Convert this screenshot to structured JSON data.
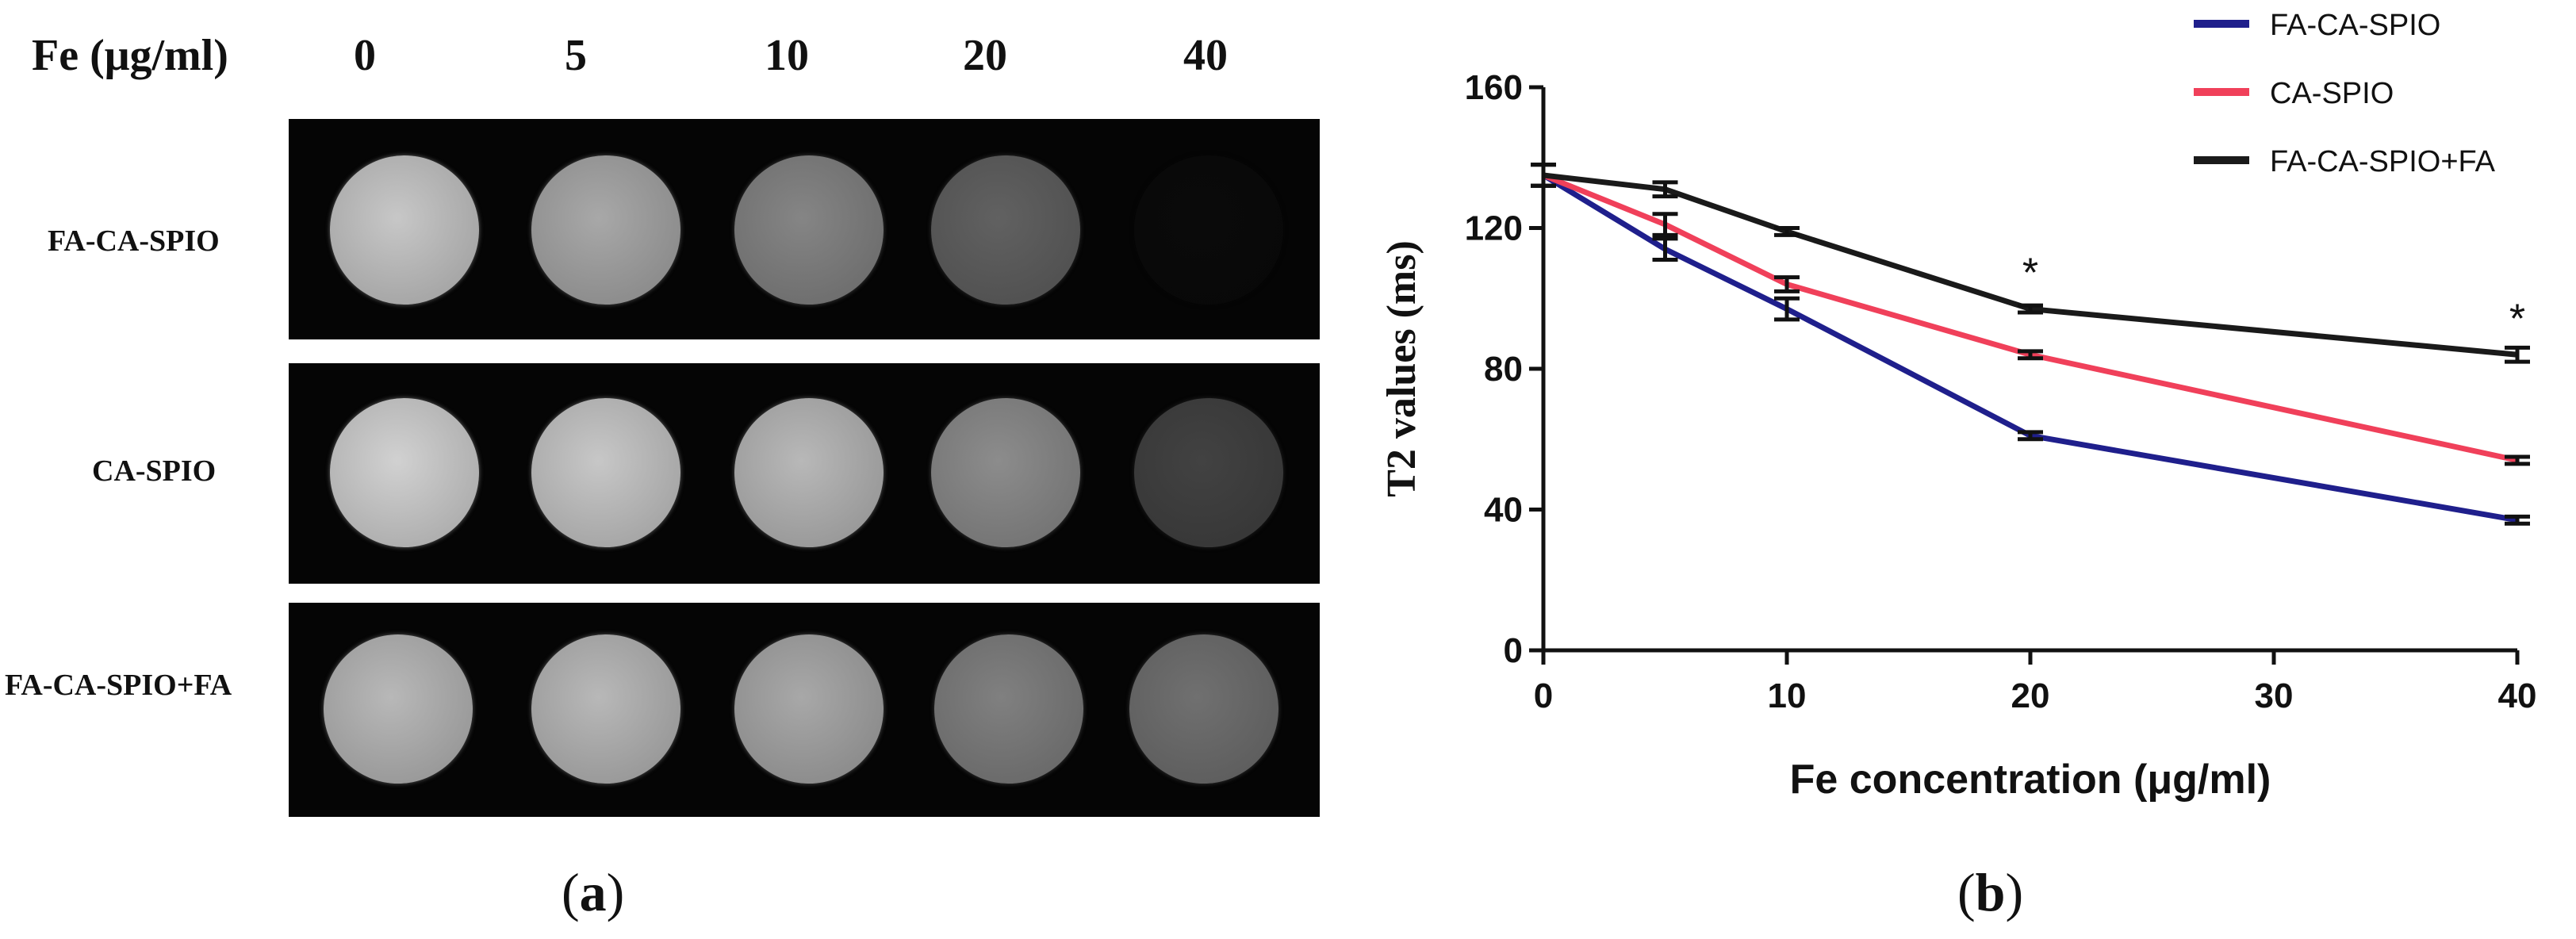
{
  "panel_a": {
    "header_label": "Fe (μg/ml)",
    "concentrations": [
      "0",
      "5",
      "10",
      "20",
      "40"
    ],
    "rows": [
      {
        "label": "FA-CA-SPIO",
        "intensities": [
          0.78,
          0.66,
          0.52,
          0.38,
          0.04
        ]
      },
      {
        "label": "CA-SPIO",
        "intensities": [
          0.82,
          0.78,
          0.72,
          0.55,
          0.26
        ]
      },
      {
        "label": "FA-CA-SPIO+FA",
        "intensities": [
          0.72,
          0.72,
          0.66,
          0.5,
          0.44
        ]
      }
    ],
    "figure_label_open": "(",
    "figure_label_letter": "a",
    "figure_label_close": ")"
  },
  "panel_b": {
    "figure_label_open": "(",
    "figure_label_letter": "b",
    "figure_label_close": ")"
  },
  "chart_data": {
    "type": "line",
    "title": "",
    "xlabel": "Fe concentration (μg/ml)",
    "ylabel": "T2 values (ms)",
    "x": [
      0,
      5,
      10,
      20,
      40
    ],
    "xlim": [
      0,
      40
    ],
    "ylim": [
      0,
      160
    ],
    "xticks": [
      0,
      10,
      20,
      30,
      40
    ],
    "yticks": [
      0,
      40,
      80,
      120,
      160
    ],
    "grid": false,
    "legend_position": "top-right",
    "series": [
      {
        "name": "FA-CA-SPIO",
        "color": "#1f1f8c",
        "values": [
          135,
          114,
          97,
          61,
          37
        ],
        "errors": [
          3,
          3,
          3,
          1,
          1
        ]
      },
      {
        "name": "CA-SPIO",
        "color": "#f0405a",
        "values": [
          135,
          121,
          104,
          84,
          54
        ],
        "errors": [
          3,
          3,
          2,
          1,
          1
        ]
      },
      {
        "name": "FA-CA-SPIO+FA",
        "color": "#1a1a1a",
        "values": [
          135,
          131,
          119,
          97,
          84
        ],
        "errors": [
          3,
          2,
          1,
          1,
          2
        ]
      }
    ],
    "annotations": [
      {
        "text": "*",
        "x": 20,
        "y": 97
      },
      {
        "text": "*",
        "x": 40,
        "y": 84
      }
    ]
  }
}
